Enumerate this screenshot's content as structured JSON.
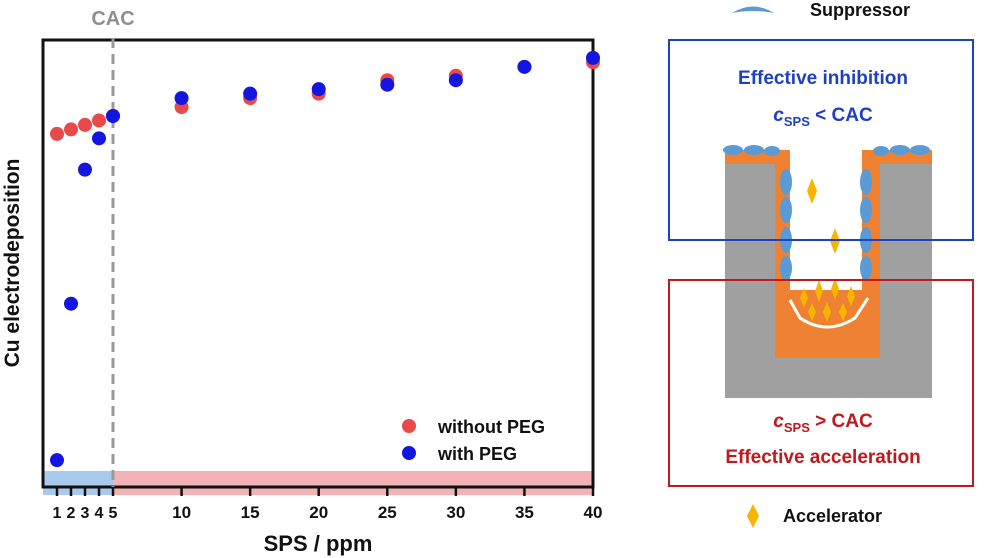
{
  "chart_data": {
    "type": "scatter",
    "title": "",
    "xlabel": "SPS / ppm",
    "ylabel": "Cu electrodeposition",
    "xlim": [
      0,
      40
    ],
    "ylim": [
      0,
      1
    ],
    "x_ticks": [
      1,
      2,
      3,
      4,
      5,
      10,
      15,
      20,
      25,
      30,
      35,
      40
    ],
    "grid": false,
    "legend": "bottom-right",
    "cac_label": "CAC",
    "cac_value": 5,
    "colors": {
      "without": "#e84a4a",
      "with": "#1515e0",
      "region_low": "#a9c9ee",
      "region_high": "#f3b3b5",
      "cac_line": "#9a9a9a"
    },
    "series": [
      {
        "name": "without PEG",
        "x": [
          1,
          2,
          3,
          4,
          5,
          10,
          15,
          20,
          25,
          30,
          35,
          40
        ],
        "y": [
          0.79,
          0.8,
          0.81,
          0.82,
          0.83,
          0.85,
          0.87,
          0.88,
          0.91,
          0.92,
          0.94,
          0.95
        ]
      },
      {
        "name": "with PEG",
        "x": [
          1,
          2,
          3,
          4,
          5,
          10,
          15,
          20,
          25,
          30,
          35,
          40
        ],
        "y": [
          0.06,
          0.41,
          0.71,
          0.78,
          0.83,
          0.87,
          0.88,
          0.89,
          0.9,
          0.91,
          0.94,
          0.96
        ]
      }
    ]
  },
  "diagram": {
    "suppressor_label": "Suppressor",
    "accelerator_label": "Accelerator",
    "inhibition": {
      "title": "Effective inhibition",
      "cond_main": "c",
      "cond_sub": "SPS",
      "cond_rest": " < CAC",
      "color": "#1f3fc4"
    },
    "acceleration": {
      "title": "Effective acceleration",
      "cond_main": "c",
      "cond_sub": "SPS",
      "cond_rest": " > CAC",
      "color": "#c0181e"
    },
    "colors": {
      "substrate": "#a0a0a0",
      "copper": "#ee8232",
      "suppressor": "#5b9bd5",
      "accelerator": "#f7b500"
    }
  }
}
